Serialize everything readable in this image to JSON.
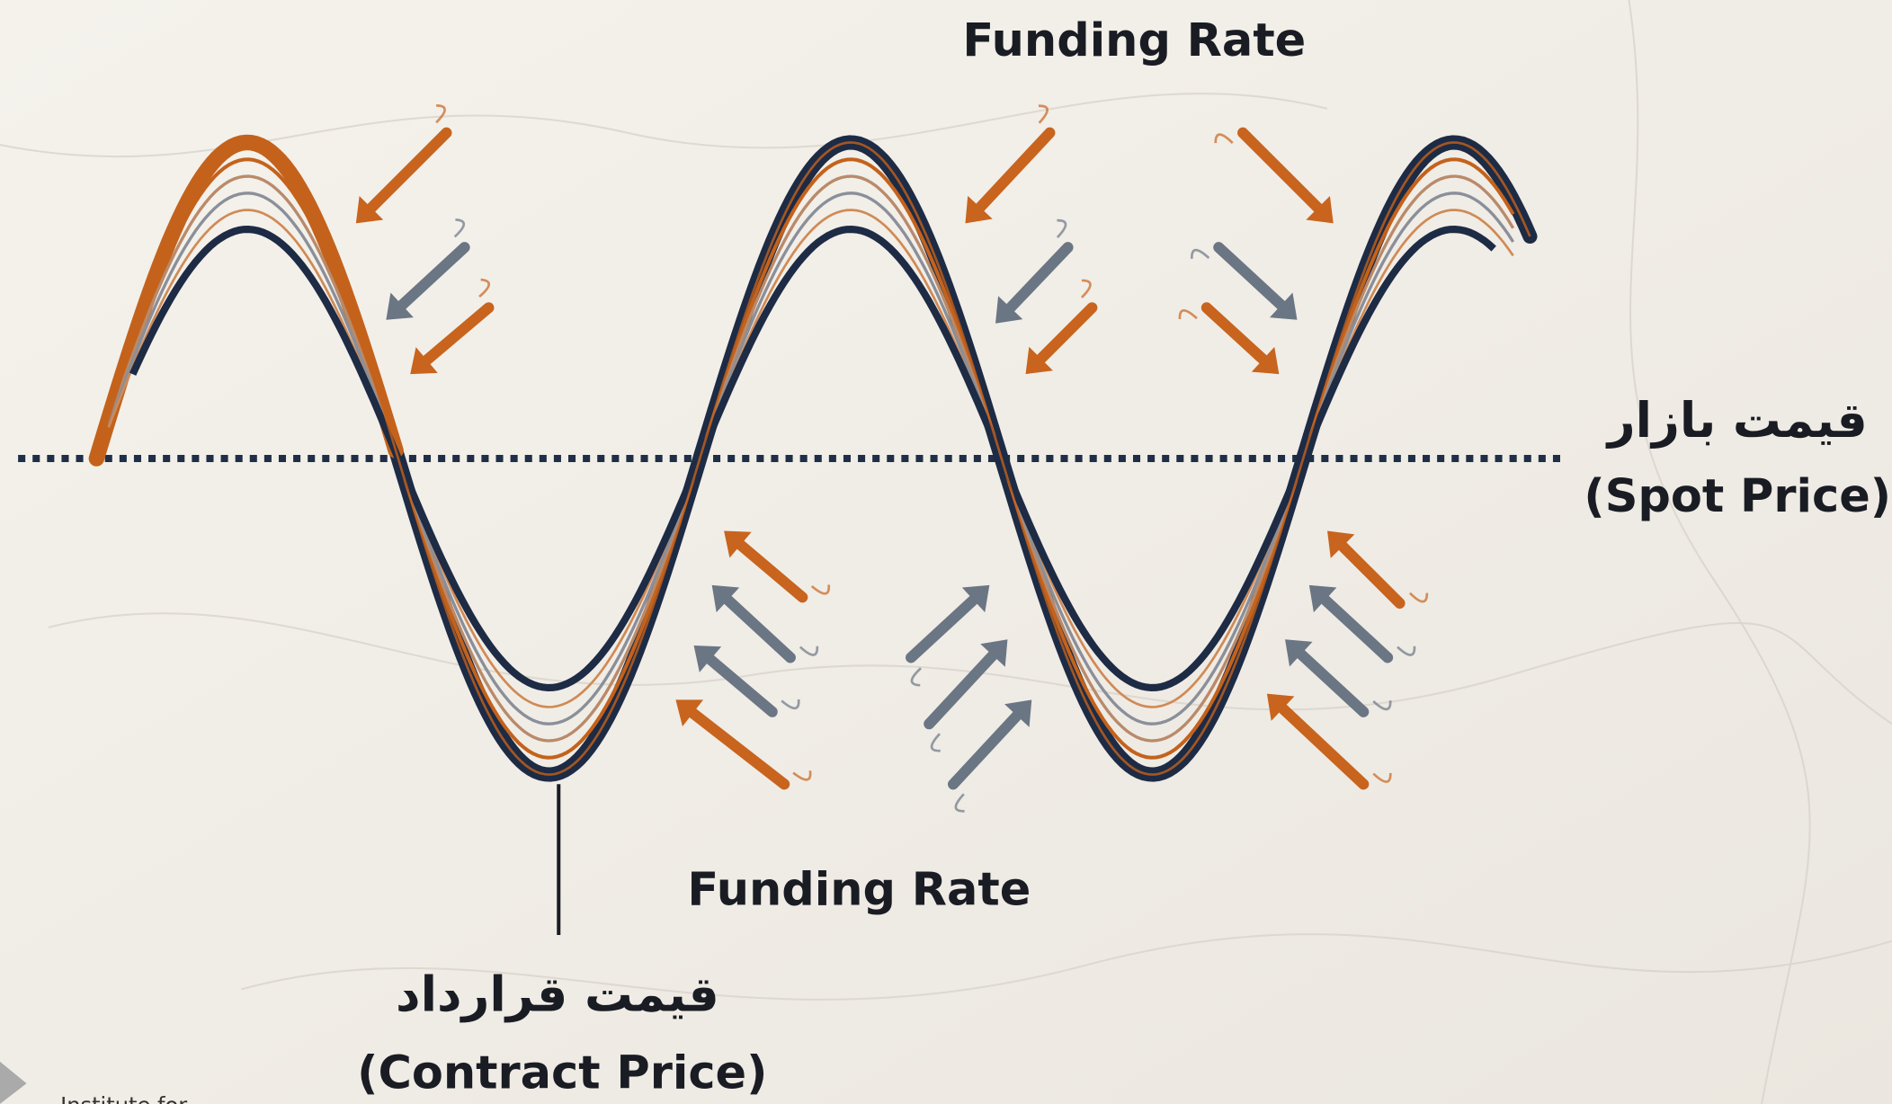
{
  "funding_rate_top": "Funding Rate",
  "funding_rate_bottom": "Funding Rate",
  "spot_price": {
    "persian": "قیمت بازار",
    "english": "(Spot Price)"
  },
  "contract_price": {
    "persian": "قیمت قرارداد",
    "english": "(Contract Price)"
  },
  "watermark": "Institute for"
}
